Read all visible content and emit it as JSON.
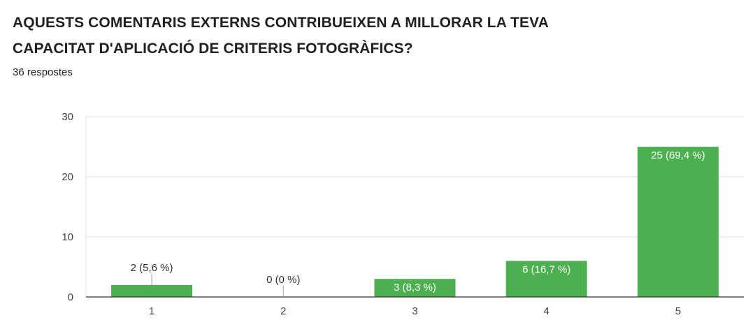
{
  "question": {
    "title_line1": "AQUESTS COMENTARIS EXTERNS CONTRIBUEIXEN A MILLORAR LA TEVA",
    "title_line2": "CAPACITAT D'APLICACIÓ DE  CRITERIS FOTOGRÀFICS?",
    "responses": "36 respostes"
  },
  "colors": {
    "bar": "#4caf50",
    "grid": "#e0e0e0",
    "axis": "#333333"
  },
  "chart_data": {
    "type": "bar",
    "categories": [
      "1",
      "2",
      "3",
      "4",
      "5"
    ],
    "values": [
      2,
      0,
      3,
      6,
      25
    ],
    "data_labels": [
      "2 (5,6 %)",
      "0 (0 %)",
      "3 (8,3 %)",
      "6 (16,7 %)",
      "25 (69,4 %)"
    ],
    "ylim": [
      0,
      30
    ],
    "yticks": [
      0,
      10,
      20,
      30
    ],
    "grid": true,
    "title": "",
    "xlabel": "",
    "ylabel": ""
  }
}
